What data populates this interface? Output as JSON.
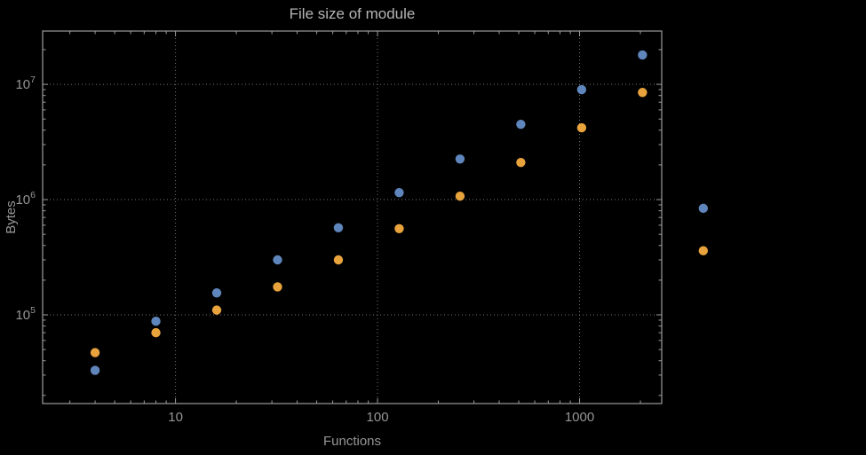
{
  "chart_data": {
    "type": "scatter",
    "title": "File size of module",
    "xlabel": "Functions",
    "ylabel": "Bytes",
    "x_scale": "log",
    "y_scale": "log",
    "x_range": [
      2.2,
      2550
    ],
    "y_range": [
      17000,
      29000000
    ],
    "grid": true,
    "legend": "none",
    "x_ticks": [
      {
        "value": 10,
        "label": "10"
      },
      {
        "value": 100,
        "label": "100"
      },
      {
        "value": 1000,
        "label": "1000"
      }
    ],
    "y_ticks": [
      {
        "value": 100000,
        "base": "10",
        "exp": "5"
      },
      {
        "value": 1000000,
        "base": "10",
        "exp": "6"
      },
      {
        "value": 10000000,
        "base": "10",
        "exp": "7"
      }
    ],
    "colors": {
      "background": "#000000",
      "frame": "#9b9b9b",
      "grid": "#747474",
      "tick_text": "#969696",
      "title_text": "#b4b4b4"
    },
    "series": [
      {
        "name": "series-blue",
        "color": "#5f86bc",
        "points": [
          [
            4,
            33000
          ],
          [
            8,
            88000
          ],
          [
            16,
            155000
          ],
          [
            32,
            300000
          ],
          [
            64,
            570000
          ],
          [
            128,
            1150000
          ],
          [
            256,
            2250000
          ],
          [
            512,
            4500000
          ],
          [
            1024,
            9000000
          ],
          [
            2048,
            18000000
          ],
          [
            4096,
            840000
          ]
        ]
      },
      {
        "name": "series-orange",
        "color": "#e8a33c",
        "points": [
          [
            4,
            47000
          ],
          [
            8,
            70000
          ],
          [
            16,
            110000
          ],
          [
            32,
            175000
          ],
          [
            64,
            300000
          ],
          [
            128,
            560000
          ],
          [
            256,
            1070000
          ],
          [
            512,
            2100000
          ],
          [
            1024,
            4200000
          ],
          [
            2048,
            8500000
          ],
          [
            4096,
            360000
          ]
        ]
      }
    ]
  }
}
